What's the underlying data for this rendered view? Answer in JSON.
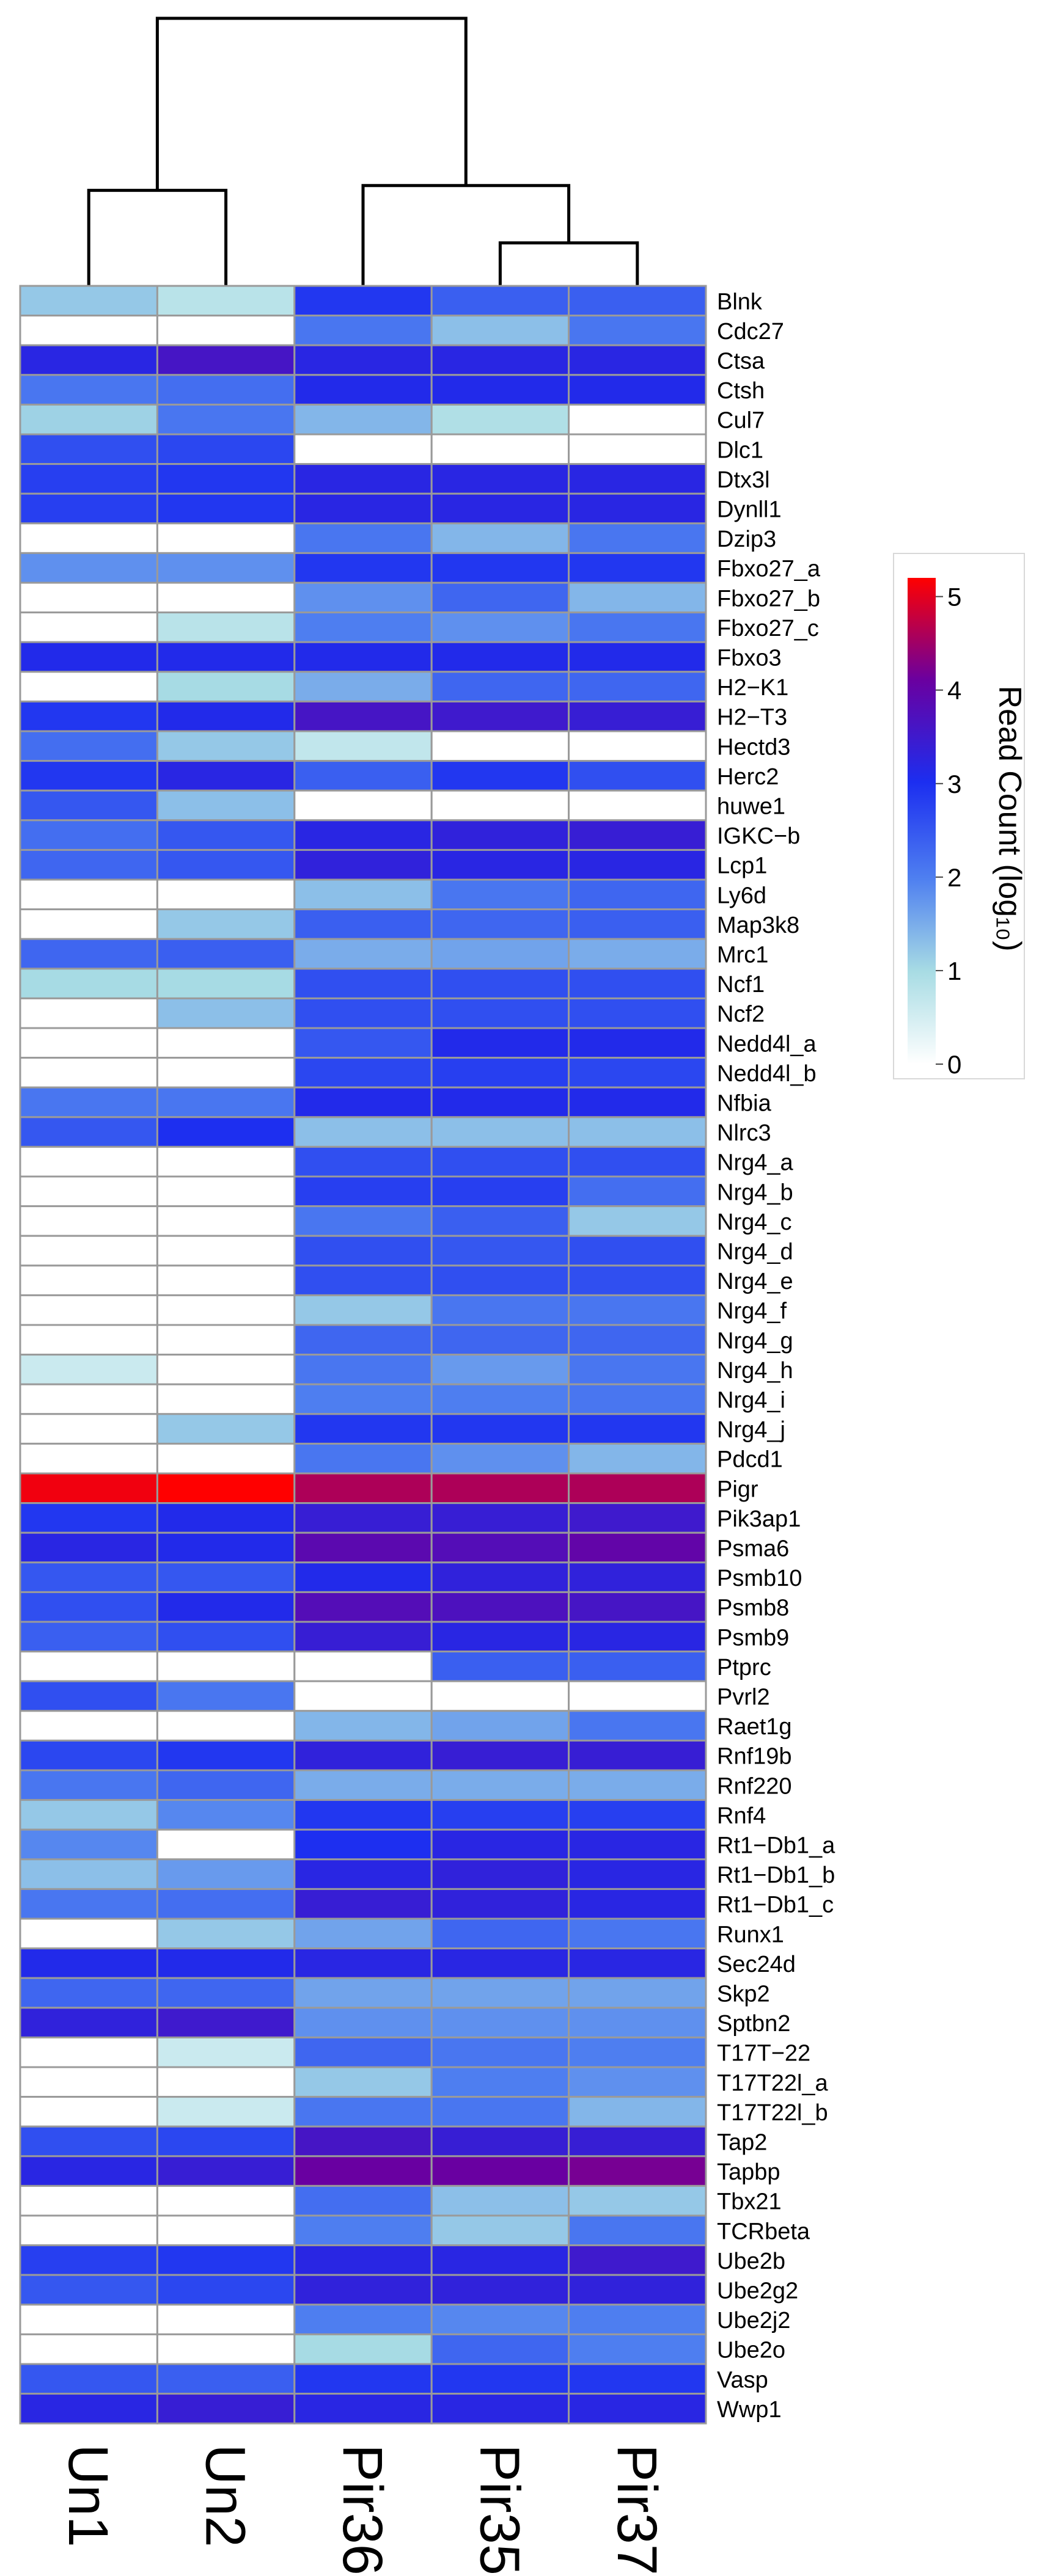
{
  "chart_data": {
    "type": "heatmap",
    "title": "",
    "columns": [
      "Un1",
      "Un2",
      "Pir36",
      "Pir35",
      "Pir37"
    ],
    "rows": [
      "Blnk",
      "Cdc27",
      "Ctsa",
      "Ctsh",
      "Cul7",
      "Dlc1",
      "Dtx3l",
      "Dynll1",
      "Dzip3",
      "Fbxo27_a",
      "Fbxo27_b",
      "Fbxo27_c",
      "Fbxo3",
      "H2−K1",
      "H2−T3",
      "Hectd3",
      "Herc2",
      "huwe1",
      "IGKC−b",
      "Lcp1",
      "Ly6d",
      "Map3k8",
      "Mrc1",
      "Ncf1",
      "Ncf2",
      "Nedd4l_a",
      "Nedd4l_b",
      "Nfbia",
      "Nlrc3",
      "Nrg4_a",
      "Nrg4_b",
      "Nrg4_c",
      "Nrg4_d",
      "Nrg4_e",
      "Nrg4_f",
      "Nrg4_g",
      "Nrg4_h",
      "Nrg4_i",
      "Nrg4_j",
      "Pdcd1",
      "Pigr",
      "Pik3ap1",
      "Psma6",
      "Psmb10",
      "Psmb8",
      "Psmb9",
      "Ptprc",
      "Pvrl2",
      "Raet1g",
      "Rnf19b",
      "Rnf220",
      "Rnf4",
      "Rt1−Db1_a",
      "Rt1−Db1_b",
      "Rt1−Db1_c",
      "Runx1",
      "Sec24d",
      "Skp2",
      "Sptbn2",
      "T17T−22",
      "T17T22l_a",
      "T17T22l_b",
      "Tap2",
      "Tapbp",
      "Tbx21",
      "TCRbeta",
      "Ube2b",
      "Ube2g2",
      "Ube2j2",
      "Ube2o",
      "Vasp",
      "Wwp1"
    ],
    "values": [
      [
        1.2,
        0.8,
        2.9,
        2.4,
        2.4
      ],
      [
        0,
        0,
        2.1,
        1.3,
        2.1
      ],
      [
        3.2,
        3.6,
        3.2,
        3.2,
        3.2
      ],
      [
        2.1,
        2.2,
        3.1,
        3.1,
        3.1
      ],
      [
        1.1,
        2.1,
        1.4,
        0.9,
        0
      ],
      [
        2.6,
        2.7,
        0,
        0,
        0
      ],
      [
        2.8,
        2.9,
        3.2,
        3.2,
        3.2
      ],
      [
        2.8,
        2.9,
        3.2,
        3.2,
        3.2
      ],
      [
        0,
        0,
        2.1,
        1.4,
        2.1
      ],
      [
        1.8,
        1.8,
        2.9,
        2.9,
        2.9
      ],
      [
        0,
        0,
        1.8,
        2.3,
        1.4
      ],
      [
        0,
        0.8,
        2.0,
        1.8,
        2.1
      ],
      [
        3.1,
        3.1,
        3.1,
        3.1,
        3.1
      ],
      [
        0,
        1.0,
        1.5,
        2.3,
        2.3
      ],
      [
        2.9,
        3.1,
        3.6,
        3.5,
        3.4
      ],
      [
        2.2,
        1.2,
        0.7,
        0,
        0
      ],
      [
        2.9,
        3.2,
        2.4,
        2.9,
        2.6
      ],
      [
        2.5,
        1.3,
        0,
        0,
        0
      ],
      [
        2.2,
        2.5,
        3.2,
        3.3,
        3.4
      ],
      [
        2.3,
        2.5,
        3.3,
        3.2,
        3.2
      ],
      [
        0,
        0,
        1.3,
        2.1,
        2.3
      ],
      [
        0,
        1.2,
        2.4,
        2.3,
        2.4
      ],
      [
        2.3,
        2.4,
        1.5,
        1.6,
        1.5
      ],
      [
        1.0,
        1.0,
        2.6,
        2.6,
        2.6
      ],
      [
        0,
        1.3,
        2.6,
        2.6,
        2.6
      ],
      [
        0,
        0,
        2.5,
        3.1,
        3.1
      ],
      [
        0,
        0,
        2.7,
        2.8,
        2.7
      ],
      [
        2.1,
        2.1,
        3.1,
        3.1,
        3.1
      ],
      [
        2.5,
        3.0,
        1.3,
        1.3,
        1.3
      ],
      [
        0,
        0,
        2.6,
        2.6,
        2.6
      ],
      [
        0,
        0,
        2.8,
        2.8,
        2.2
      ],
      [
        0,
        0,
        2.1,
        2.4,
        1.2
      ],
      [
        0,
        0,
        2.6,
        2.5,
        2.6
      ],
      [
        0,
        0,
        2.6,
        2.6,
        2.6
      ],
      [
        0,
        0,
        1.2,
        2.1,
        2.1
      ],
      [
        0,
        0,
        2.3,
        2.3,
        2.3
      ],
      [
        0.6,
        0,
        2.1,
        1.7,
        2.1
      ],
      [
        0,
        0,
        2.0,
        2.0,
        2.1
      ],
      [
        0,
        1.2,
        2.9,
        2.9,
        2.9
      ],
      [
        0,
        0,
        2.1,
        1.8,
        1.4
      ],
      [
        5.1,
        5.2,
        4.6,
        4.6,
        4.6
      ],
      [
        2.9,
        3.1,
        3.4,
        3.4,
        3.5
      ],
      [
        3.2,
        3.1,
        3.9,
        3.8,
        4.0
      ],
      [
        2.5,
        2.5,
        3.1,
        3.3,
        3.3
      ],
      [
        2.6,
        3.1,
        3.8,
        3.7,
        3.6
      ],
      [
        2.4,
        2.6,
        3.4,
        3.2,
        3.2
      ],
      [
        0,
        0,
        0,
        2.4,
        2.4
      ],
      [
        2.6,
        2.1,
        0,
        0,
        0
      ],
      [
        0,
        0,
        1.4,
        1.6,
        2.1
      ],
      [
        2.7,
        2.9,
        3.3,
        3.4,
        3.4
      ],
      [
        2.1,
        2.3,
        1.5,
        1.5,
        1.5
      ],
      [
        1.2,
        1.9,
        2.9,
        2.8,
        2.8
      ],
      [
        1.9,
        0,
        3.0,
        3.2,
        3.2
      ],
      [
        1.3,
        1.7,
        3.2,
        3.3,
        3.2
      ],
      [
        2.1,
        2.2,
        3.4,
        3.3,
        3.2
      ],
      [
        0,
        1.2,
        1.6,
        2.3,
        2.1
      ],
      [
        3.1,
        3.1,
        3.2,
        3.2,
        3.2
      ],
      [
        2.3,
        2.3,
        1.6,
        1.6,
        1.6
      ],
      [
        3.3,
        3.5,
        1.8,
        1.8,
        1.8
      ],
      [
        0,
        0.6,
        2.3,
        2.1,
        2.0
      ],
      [
        0,
        0,
        1.2,
        2.0,
        1.8
      ],
      [
        0,
        0.6,
        2.1,
        2.1,
        1.4
      ],
      [
        2.6,
        2.7,
        3.6,
        3.4,
        3.4
      ],
      [
        3.2,
        3.4,
        4.1,
        4.1,
        4.2
      ],
      [
        0,
        0,
        2.2,
        1.3,
        1.2
      ],
      [
        0,
        0,
        2.0,
        1.2,
        2.1
      ],
      [
        2.8,
        2.9,
        3.2,
        3.2,
        3.5
      ],
      [
        2.5,
        2.7,
        3.3,
        3.3,
        3.3
      ],
      [
        0,
        0,
        2.0,
        1.9,
        2.0
      ],
      [
        0,
        0,
        1.0,
        2.3,
        2.0
      ],
      [
        2.5,
        2.4,
        2.9,
        2.9,
        2.9
      ],
      [
        3.2,
        3.4,
        3.2,
        3.2,
        3.2
      ]
    ],
    "colorbar": {
      "label": "Read Count (log₁₀)",
      "ticks": [
        "0",
        "1",
        "2",
        "3",
        "4",
        "5"
      ],
      "min": 0,
      "max": 5.2
    },
    "dendrogram": {
      "merges": [
        [
          0,
          1
        ],
        [
          3,
          4
        ],
        [
          2,
          6
        ],
        [
          5,
          7
        ]
      ],
      "heights": [
        1.0,
        0.45,
        1.05,
        2.8
      ]
    },
    "colors": {
      "scale": [
        "#ffffff",
        "#a8dce4",
        "#4f80f0",
        "#1c2ef0",
        "#6a00a0",
        "#ff0000"
      ],
      "grid": "#9a9a9a",
      "dendrogram": "#000000"
    }
  }
}
